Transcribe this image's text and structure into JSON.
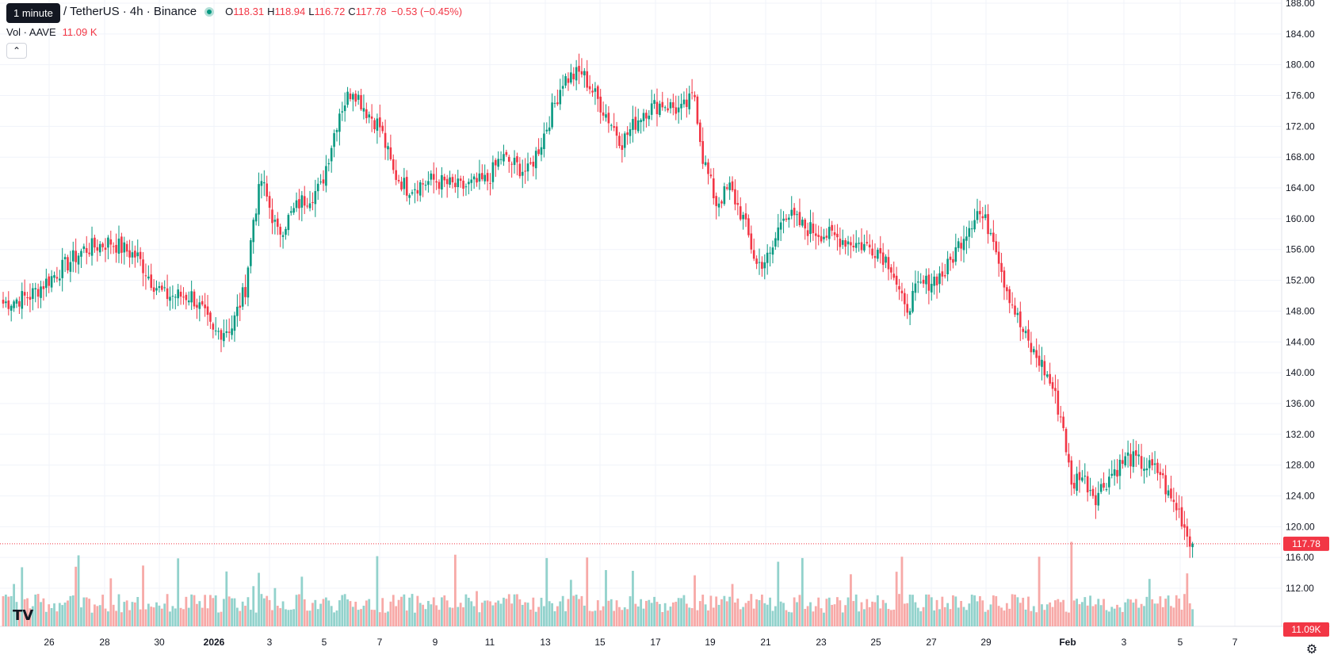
{
  "header": {
    "tooltip": "1 minute",
    "symbol": "/ TetherUS · 4h · Binance",
    "o_label": "O",
    "o_value": "118.31",
    "h_label": "H",
    "h_value": "118.94",
    "l_label": "L",
    "l_value": "116.72",
    "c_label": "C",
    "c_value": "117.78",
    "change": "−0.53 (−0.45%)",
    "vol_label": "Vol · AAVE",
    "vol_value": "11.09 K"
  },
  "colors": {
    "up": "#089981",
    "down": "#f23645",
    "up_vol": "#92d2cc",
    "down_vol": "#f7a9a7",
    "grid": "#f0f3fa"
  },
  "icons": {
    "logo": "tradingview-logo-icon",
    "settings": "gear-icon",
    "collapse": "chevron-up-icon"
  },
  "chart_data": {
    "type": "candlestick",
    "price_axis": {
      "min": 112,
      "max": 188,
      "ticks": [
        "188.00",
        "184.00",
        "180.00",
        "176.00",
        "172.00",
        "168.00",
        "164.00",
        "160.00",
        "156.00",
        "152.00",
        "148.00",
        "144.00",
        "140.00",
        "136.00",
        "132.00",
        "128.00",
        "124.00",
        "120.00",
        "116.00",
        "112.00"
      ]
    },
    "time_axis": {
      "labels": [
        "26",
        "28",
        "30",
        "2026",
        "3",
        "5",
        "7",
        "9",
        "11",
        "13",
        "15",
        "17",
        "19",
        "21",
        "23",
        "25",
        "27",
        "29",
        "Feb",
        "3",
        "5",
        "7"
      ]
    },
    "last_price": "117.78",
    "last_volume": "11.09K",
    "close_anchors": [
      [
        0,
        149
      ],
      [
        10,
        150
      ],
      [
        20,
        153
      ],
      [
        30,
        156
      ],
      [
        40,
        157
      ],
      [
        45,
        156
      ],
      [
        50,
        155
      ],
      [
        55,
        152
      ],
      [
        60,
        150
      ],
      [
        70,
        150
      ],
      [
        74,
        148
      ],
      [
        78,
        145
      ],
      [
        85,
        146
      ],
      [
        90,
        151
      ],
      [
        93,
        160
      ],
      [
        96,
        165
      ],
      [
        102,
        158
      ],
      [
        110,
        162
      ],
      [
        118,
        164
      ],
      [
        125,
        174
      ],
      [
        130,
        177
      ],
      [
        135,
        174
      ],
      [
        140,
        172
      ],
      [
        145,
        166
      ],
      [
        150,
        164
      ],
      [
        160,
        165
      ],
      [
        170,
        164
      ],
      [
        180,
        165
      ],
      [
        185,
        168
      ],
      [
        195,
        166
      ],
      [
        200,
        170
      ],
      [
        208,
        178
      ],
      [
        215,
        179
      ],
      [
        220,
        176
      ],
      [
        230,
        170
      ],
      [
        238,
        174
      ],
      [
        245,
        175
      ],
      [
        252,
        174
      ],
      [
        257,
        176
      ],
      [
        260,
        168
      ],
      [
        265,
        162
      ],
      [
        270,
        164
      ],
      [
        275,
        160
      ],
      [
        280,
        154
      ],
      [
        285,
        155
      ],
      [
        290,
        161
      ],
      [
        297,
        159
      ],
      [
        305,
        158
      ],
      [
        315,
        157
      ],
      [
        325,
        156
      ],
      [
        330,
        154
      ],
      [
        335,
        148
      ],
      [
        340,
        151
      ],
      [
        350,
        153
      ],
      [
        357,
        158
      ],
      [
        362,
        161
      ],
      [
        368,
        158
      ],
      [
        372,
        152
      ],
      [
        378,
        146
      ],
      [
        382,
        143
      ],
      [
        386,
        141
      ],
      [
        390,
        138
      ],
      [
        394,
        133
      ],
      [
        397,
        125
      ],
      [
        400,
        127
      ],
      [
        406,
        124
      ],
      [
        412,
        127
      ],
      [
        418,
        129
      ],
      [
        424,
        128
      ],
      [
        430,
        127
      ],
      [
        433,
        124
      ],
      [
        437,
        122
      ],
      [
        440,
        119
      ],
      [
        442,
        117.78
      ]
    ],
    "volume_max": 16000
  }
}
